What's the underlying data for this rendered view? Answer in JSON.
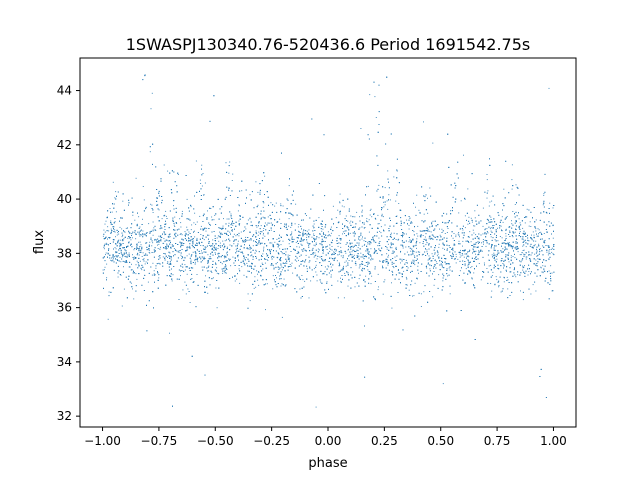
{
  "chart_data": {
    "type": "scatter",
    "title": "1SWASPJ130340.76-520436.6 Period 1691542.75s",
    "xlabel": "phase",
    "ylabel": "flux",
    "xlim": [
      -1.1,
      1.1
    ],
    "ylim": [
      31.6,
      45.2
    ],
    "xticks": [
      -1.0,
      -0.75,
      -0.5,
      -0.25,
      0.0,
      0.25,
      0.5,
      0.75,
      1.0
    ],
    "xtick_labels": [
      "−1.00",
      "−0.75",
      "−0.50",
      "−0.25",
      "0.00",
      "0.25",
      "0.50",
      "0.75",
      "1.00"
    ],
    "yticks": [
      32,
      34,
      36,
      38,
      40,
      42,
      44
    ],
    "ytick_labels": [
      "32",
      "34",
      "36",
      "38",
      "40",
      "42",
      "44"
    ],
    "grid": false,
    "legend": "none",
    "marker_color": "#1f77b4",
    "series": [
      {
        "baseline_flux": 38.2,
        "phase_range": [
          -1.0,
          1.0
        ],
        "flux_range": [
          32.2,
          44.6
        ],
        "bright_bands_phase": [
          -0.95,
          -0.75,
          -0.68,
          -0.57,
          -0.44,
          -0.38,
          -0.3,
          -0.17,
          0.05,
          0.25,
          0.3,
          0.43,
          0.56,
          0.62,
          0.7,
          0.83,
          0.95
        ],
        "bright_band_flux_max": [
          40.5,
          41.5,
          41.5,
          41.5,
          41.5,
          41.0,
          41.5,
          41.0,
          40.5,
          41.5,
          41.5,
          41.5,
          41.5,
          41.0,
          41.5,
          41.0,
          40.5
        ],
        "flare_phase": [
          -0.8,
          0.2
        ],
        "flare_flux_max": 44.6
      }
    ]
  }
}
